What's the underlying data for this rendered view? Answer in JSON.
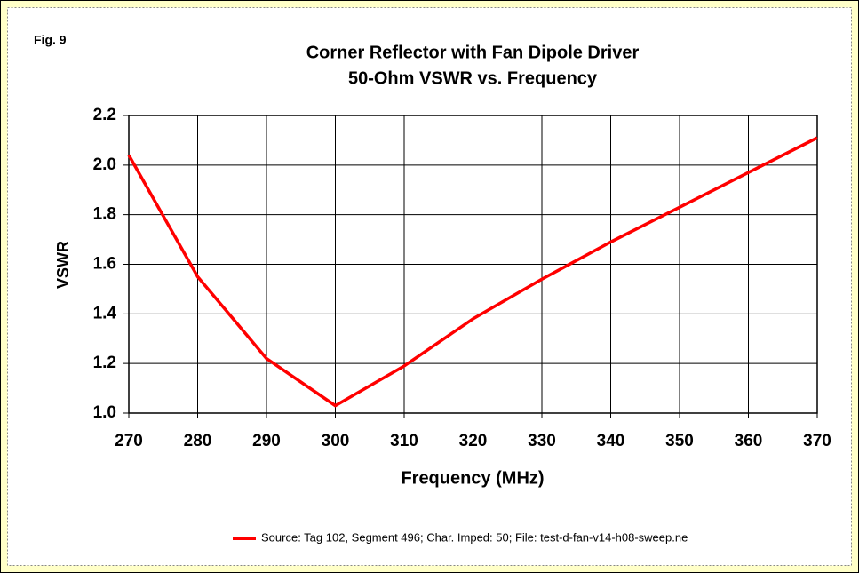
{
  "chart_data": {
    "type": "line",
    "annotation": "Fig. 9",
    "title": "Corner Reflector with Fan Dipole Driver",
    "subtitle": "50-Ohm VSWR vs. Frequency",
    "x_label": "Frequency (MHz)",
    "y_label": "VSWR",
    "x": [
      270,
      280,
      290,
      300,
      310,
      320,
      330,
      340,
      350,
      360,
      370
    ],
    "series": [
      {
        "name": "Source: Tag 102, Segment 496; Char. Imped: 50; File: test-d-fan-v14-h08-sweep.ne",
        "color": "#ff0000",
        "values": [
          2.04,
          1.55,
          1.22,
          1.03,
          1.19,
          1.38,
          1.54,
          1.69,
          1.83,
          1.97,
          2.11
        ]
      }
    ],
    "xlim": [
      270,
      370
    ],
    "xticks": [
      270,
      280,
      290,
      300,
      310,
      320,
      330,
      340,
      350,
      360,
      370
    ],
    "ylim": [
      1.0,
      2.2
    ],
    "yticks": [
      {
        "value": 1.0,
        "label": "1.0"
      },
      1.2,
      1.4,
      1.6,
      1.8,
      {
        "value": 2.0,
        "label": "2.0"
      },
      2.2
    ],
    "grid": true
  }
}
